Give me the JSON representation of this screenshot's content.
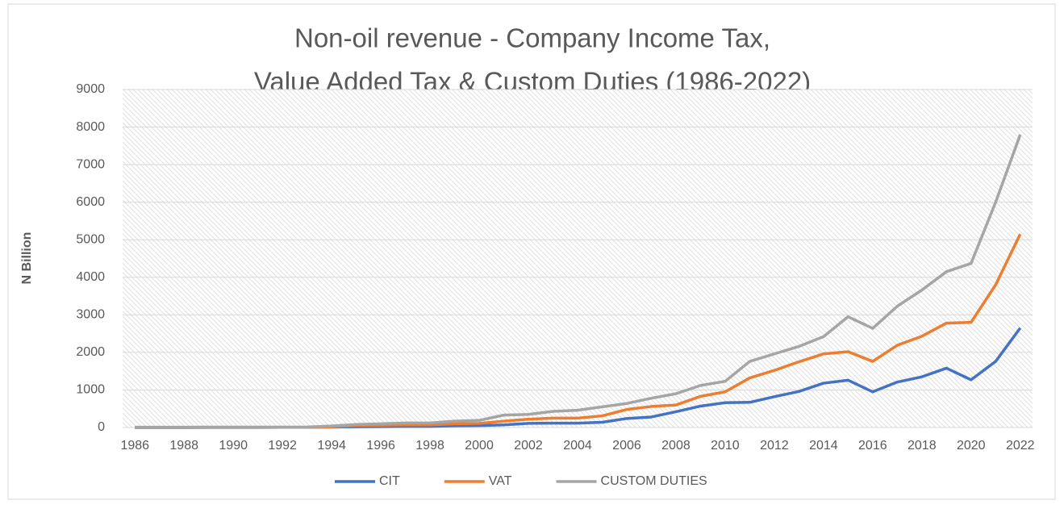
{
  "chart_data": {
    "type": "line",
    "stacked": true,
    "title": [
      "Non-oil revenue - Company Income Tax,",
      "Value Added Tax & Custom Duties (1986-2022)"
    ],
    "y_label": "N Billion",
    "categories": [
      "1986",
      null,
      "1988",
      null,
      "1990",
      null,
      "1992",
      null,
      "1994",
      null,
      "1996",
      null,
      "1998",
      null,
      "2000",
      null,
      "2002",
      null,
      "2004",
      null,
      "2006",
      null,
      "2008",
      null,
      "2010",
      null,
      "2012",
      null,
      "2014",
      null,
      "2016",
      null,
      "2018",
      null,
      "2020",
      null,
      "2022"
    ],
    "series": [
      {
        "name": "CIT",
        "color": "#4472c4",
        "values": [
          1,
          1,
          1,
          2,
          3,
          4,
          5,
          6,
          10,
          20,
          25,
          30,
          30,
          45,
          50,
          70,
          110,
          115,
          115,
          140,
          240,
          280,
          420,
          570,
          660,
          670,
          820,
          960,
          1180,
          1260,
          950,
          1210,
          1350,
          1580,
          1270,
          1760,
          2650
        ]
      },
      {
        "name": "VAT",
        "color": "#ed7d31",
        "values": [
          0,
          0,
          0,
          0,
          0,
          0,
          0,
          0,
          10,
          30,
          35,
          40,
          40,
          55,
          60,
          100,
          110,
          135,
          135,
          170,
          240,
          280,
          180,
          260,
          290,
          650,
          700,
          790,
          780,
          760,
          810,
          980,
          1080,
          1200,
          1530,
          2040,
          2500
        ]
      },
      {
        "name": "CUSTOM DUTIES",
        "color": "#a5a5a5",
        "values": [
          8,
          8,
          8,
          8,
          7,
          6,
          5,
          8,
          20,
          30,
          40,
          50,
          50,
          70,
          80,
          160,
          130,
          180,
          210,
          240,
          160,
          220,
          300,
          290,
          280,
          440,
          440,
          410,
          460,
          930,
          880,
          1040,
          1230,
          1370,
          1570,
          2200,
          2650
        ]
      }
    ],
    "ylim": [
      0,
      9000
    ],
    "yticks": [
      0,
      1000,
      2000,
      3000,
      4000,
      5000,
      6000,
      7000,
      8000,
      9000
    ],
    "grid": true,
    "legend": "bottom"
  }
}
